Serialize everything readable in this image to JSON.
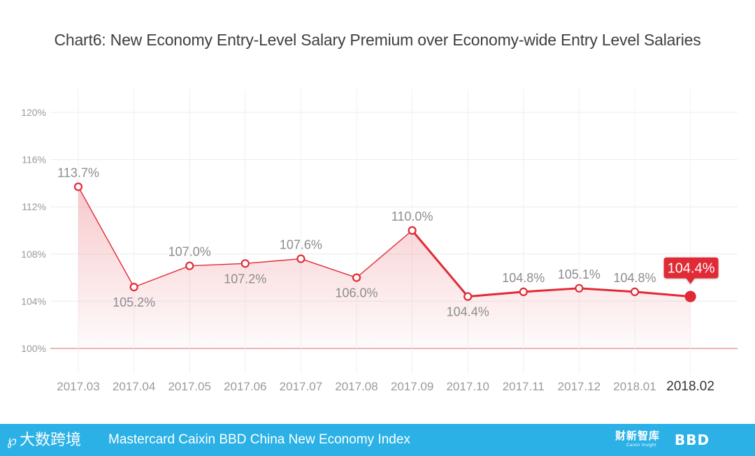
{
  "title": "Chart6: New Economy Entry-Level Salary Premium over Economy-wide Entry Level Salaries",
  "chart_data": {
    "type": "line",
    "title": "Chart6: New Economy Entry-Level Salary Premium over Economy-wide Entry Level Salaries",
    "categories": [
      "2017.03",
      "2017.04",
      "2017.05",
      "2017.06",
      "2017.07",
      "2017.08",
      "2017.09",
      "2017.10",
      "2017.11",
      "2017.12",
      "2018.01",
      "2018.02"
    ],
    "values": [
      113.7,
      105.2,
      107.0,
      107.2,
      107.6,
      106.0,
      110.0,
      104.4,
      104.8,
      105.1,
      104.8,
      104.4
    ],
    "data_labels": [
      "113.7%",
      "105.2%",
      "107.0%",
      "107.2%",
      "107.6%",
      "106.0%",
      "110.0%",
      "104.4%",
      "104.8%",
      "105.1%",
      "104.8%",
      "104.4%"
    ],
    "label_positions": [
      "above",
      "below",
      "above",
      "below",
      "above",
      "below",
      "above",
      "below",
      "above",
      "above",
      "above",
      "above"
    ],
    "yticks": [
      100,
      104,
      108,
      112,
      116,
      120
    ],
    "ytick_labels": [
      "100%",
      "104%",
      "108%",
      "112%",
      "116%",
      "120%"
    ],
    "ylim": [
      98,
      122
    ],
    "reference_line": 100,
    "grid": true,
    "line_color": "#e02a36",
    "highlight_last": true
  },
  "footer": {
    "logo_text": "大数跨境",
    "index_name": "Mastercard Caixin BBD China New Economy Index",
    "caixin_logo_text": "财新智库",
    "caixin_logo_sub": "Caixin Insight",
    "bbd_logo_text": "BBD"
  },
  "colors": {
    "footer_bg": "#2bb1e6",
    "accent": "#e02a36",
    "axis_text": "#8c8c8c"
  }
}
